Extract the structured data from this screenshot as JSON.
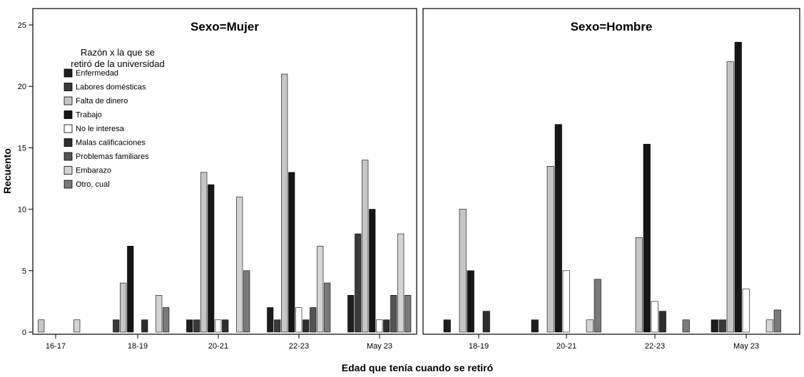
{
  "chart_data": {
    "type": "bar",
    "xlabel": "Edad que tenía cuando se retiró",
    "ylabel": "Recuento",
    "ylim": [
      0,
      25
    ],
    "yticks": [
      0,
      5,
      10,
      15,
      20,
      25
    ],
    "legend": {
      "title_line1": "Razón x la que se",
      "title_line2": "retiró de la universidad",
      "placement": "top-left"
    },
    "series_styles": [
      {
        "name": "Enfermedad",
        "color": "#1e1e1e"
      },
      {
        "name": "Labores domésticas",
        "color": "#3a3a3a"
      },
      {
        "name": "Falta de dinero",
        "color": "#c6c6c6"
      },
      {
        "name": "Trabajo",
        "color": "#161616"
      },
      {
        "name": "No le interesa",
        "color": "#ffffff"
      },
      {
        "name": "Malas calificaciones",
        "color": "#2e2e2e"
      },
      {
        "name": "Problemas familiares",
        "color": "#555555"
      },
      {
        "name": "Embarazo",
        "color": "#d4d4d4"
      },
      {
        "name": "Otro, cual",
        "color": "#7a7a7a"
      }
    ],
    "panels": [
      {
        "title": "Sexo=Mujer",
        "categories": [
          "16-17",
          "18-19",
          "20-21",
          "22-23",
          "May 23"
        ],
        "series": [
          {
            "name": "Enfermedad",
            "values": [
              0,
              0,
              1,
              2,
              3
            ]
          },
          {
            "name": "Labores domésticas",
            "values": [
              0,
              1,
              1,
              1,
              8
            ]
          },
          {
            "name": "Falta de dinero",
            "values": [
              1,
              4,
              13,
              21,
              14
            ]
          },
          {
            "name": "Trabajo",
            "values": [
              0,
              7,
              12,
              13,
              10
            ]
          },
          {
            "name": "No le interesa",
            "values": [
              0,
              0,
              1,
              2,
              1
            ]
          },
          {
            "name": "Malas calificaciones",
            "values": [
              0,
              1,
              1,
              1,
              1
            ]
          },
          {
            "name": "Problemas familiares",
            "values": [
              0,
              0,
              0,
              2,
              3
            ]
          },
          {
            "name": "Embarazo",
            "values": [
              1,
              3,
              11,
              7,
              8
            ]
          },
          {
            "name": "Otro, cual",
            "values": [
              0,
              2,
              5,
              4,
              3
            ]
          }
        ]
      },
      {
        "title": "Sexo=Hombre",
        "categories": [
          "18-19",
          "20-21",
          "22-23",
          "May 23"
        ],
        "series": [
          {
            "name": "Enfermedad",
            "values": [
              1,
              1,
              0,
              1
            ]
          },
          {
            "name": "Labores domésticas",
            "values": [
              0,
              0,
              0,
              1
            ]
          },
          {
            "name": "Falta de dinero",
            "values": [
              10,
              13.5,
              7.7,
              22
            ]
          },
          {
            "name": "Trabajo",
            "values": [
              5,
              16.9,
              15.3,
              23.6
            ]
          },
          {
            "name": "No le interesa",
            "values": [
              0,
              5,
              2.5,
              3.5
            ]
          },
          {
            "name": "Malas calificaciones",
            "values": [
              1.7,
              0,
              1.7,
              0
            ]
          },
          {
            "name": "Problemas familiares",
            "values": [
              0,
              0,
              0,
              0
            ]
          },
          {
            "name": "Embarazo",
            "values": [
              0,
              1,
              0,
              1
            ]
          },
          {
            "name": "Otro, cual",
            "values": [
              0,
              4.3,
              1,
              1.8
            ]
          }
        ]
      }
    ]
  }
}
